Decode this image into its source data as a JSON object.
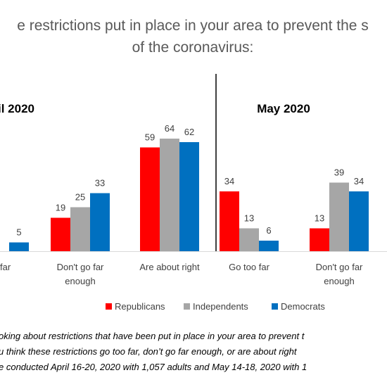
{
  "chart_data": {
    "type": "bar",
    "title": [
      "e restrictions put in place in your area to prevent the s",
      "of the coronavirus:"
    ],
    "panels": [
      {
        "title": "il 2020",
        "categories": [
          [
            "far"
          ],
          [
            "Don't go far",
            "enough"
          ],
          [
            "Are about right"
          ]
        ],
        "series": [
          {
            "name": "Republicans",
            "values": [
              null,
              19,
              59
            ]
          },
          {
            "name": "Independents",
            "values": [
              null,
              25,
              64
            ]
          },
          {
            "name": "Democrats",
            "values": [
              5,
              33,
              62
            ]
          }
        ]
      },
      {
        "title": "May 2020",
        "categories": [
          [
            "Go too far"
          ],
          [
            "Don't go far",
            "enough"
          ]
        ],
        "series": [
          {
            "name": "Republicans",
            "values": [
              34,
              13
            ]
          },
          {
            "name": "Independents",
            "values": [
              13,
              39
            ]
          },
          {
            "name": "Democrats",
            "values": [
              6,
              34
            ]
          }
        ]
      }
    ],
    "legend": {
      "position": "bottom",
      "entries": [
        "Republicans",
        "Independents",
        "Democrats"
      ]
    },
    "colors": {
      "Republicans": "#ff0000",
      "Independents": "#a6a6a6",
      "Democrats": "#0070c0"
    },
    "ylim": [
      0,
      70
    ],
    "footnote": [
      "oking about restrictions that have been put in place in your area to prevent t",
      "u think these restrictions go too far, don’t go far enough, or are about right",
      "e conducted April 16-20, 2020 with 1,057 adults and May 14-18, 2020 with 1"
    ]
  }
}
